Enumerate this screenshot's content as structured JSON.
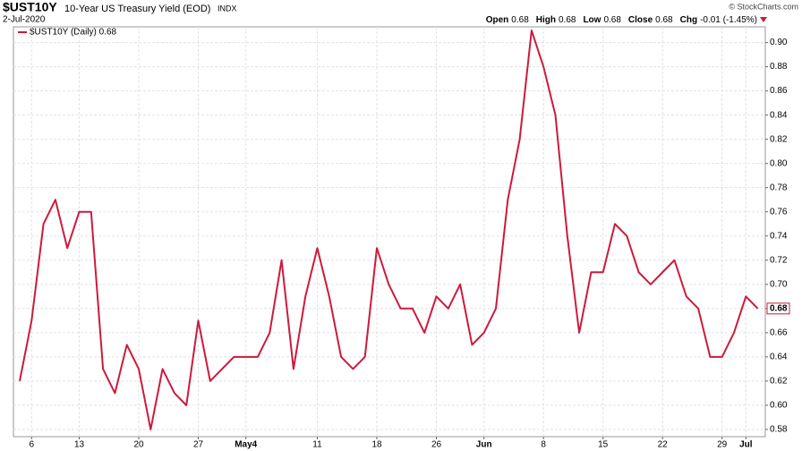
{
  "chart_data": {
    "type": "line",
    "symbol": "$UST10Y",
    "title": "10-Year US Treasury Yield (EOD)",
    "exchange": "INDX",
    "date": "2-Jul-2020",
    "quote": [
      {
        "label": "Open",
        "value": "0.68"
      },
      {
        "label": "High",
        "value": "0.68"
      },
      {
        "label": "Low",
        "value": "0.68"
      },
      {
        "label": "Close",
        "value": "0.68"
      },
      {
        "label": "Chg",
        "value": "-0.01 (-1.45%)"
      }
    ],
    "credit": "© StockCharts.com",
    "categories": [
      null,
      "6",
      null,
      null,
      null,
      "13",
      null,
      null,
      null,
      null,
      "20",
      null,
      null,
      null,
      null,
      "27",
      null,
      null,
      null,
      "May4",
      null,
      null,
      null,
      null,
      null,
      "11",
      null,
      null,
      null,
      null,
      "18",
      null,
      null,
      null,
      null,
      "26",
      null,
      null,
      null,
      "Jun",
      null,
      null,
      null,
      null,
      "8",
      null,
      null,
      null,
      null,
      "15",
      null,
      null,
      null,
      null,
      "22",
      null,
      null,
      null,
      null,
      "29",
      null,
      "Jul",
      null
    ],
    "series": [
      {
        "name": "$UST10Y (Daily) 0.68",
        "color": "#cc1a3c",
        "values": [
          0.62,
          0.67,
          0.75,
          0.77,
          0.73,
          0.76,
          0.76,
          0.63,
          0.61,
          0.65,
          0.63,
          0.58,
          0.63,
          0.61,
          0.6,
          0.67,
          0.62,
          0.63,
          0.64,
          0.64,
          0.64,
          0.66,
          0.72,
          0.63,
          0.69,
          0.73,
          0.69,
          0.64,
          0.63,
          0.64,
          0.73,
          0.7,
          0.68,
          0.68,
          0.66,
          0.69,
          0.68,
          0.7,
          0.65,
          0.66,
          0.68,
          0.77,
          0.82,
          0.91,
          0.88,
          0.84,
          0.74,
          0.66,
          0.71,
          0.71,
          0.75,
          0.74,
          0.71,
          0.7,
          0.71,
          0.72,
          0.69,
          0.68,
          0.64,
          0.64,
          0.66,
          0.69,
          0.68
        ]
      }
    ],
    "ylim": [
      0.574,
      0.913
    ],
    "yticks": [
      0.58,
      {
        "value": 0.6,
        "label": "0.60"
      },
      0.62,
      0.64,
      0.66,
      0.68,
      {
        "value": 0.7,
        "label": "0.70"
      },
      0.72,
      0.74,
      0.76,
      0.78,
      {
        "value": 0.8,
        "label": "0.80"
      },
      0.82,
      0.84,
      0.86,
      0.88,
      {
        "value": 0.9,
        "label": "0.90"
      }
    ],
    "grid": true
  }
}
